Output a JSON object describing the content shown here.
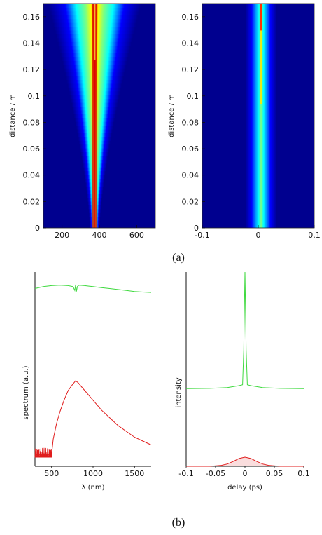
{
  "captions": {
    "a": "(a)",
    "b": "(b)"
  },
  "chart_data": [
    {
      "panel": "a-left",
      "type": "heatmap",
      "ylabel": "distance / m",
      "xlabel": "",
      "xlim": [
        100,
        700
      ],
      "ylim": [
        0,
        0.17
      ],
      "xticks": [
        "200",
        "400",
        "600"
      ],
      "xtick_values": [
        200,
        400,
        600
      ],
      "yticks": [
        "0",
        "0.02",
        "0.04",
        "0.06",
        "0.08",
        "0.1",
        "0.12",
        "0.14",
        "0.16"
      ],
      "ytick_values": [
        0,
        0.02,
        0.04,
        0.06,
        0.08,
        0.1,
        0.12,
        0.14,
        0.16
      ],
      "colormap": "jet",
      "ridge_center": 375,
      "width_at_bottom": 25,
      "width_at_top": 230
    },
    {
      "panel": "a-right",
      "type": "heatmap",
      "ylabel": "distance / m",
      "xlabel": "",
      "xlim": [
        -0.1,
        0.1
      ],
      "ylim": [
        0,
        0.17
      ],
      "xticks": [
        "-0.1",
        "0",
        "0.1"
      ],
      "xtick_values": [
        -0.1,
        0,
        0.1
      ],
      "yticks": [
        "0",
        "0.02",
        "0.04",
        "0.06",
        "0.08",
        "0.1",
        "0.12",
        "0.14",
        "0.16"
      ],
      "ytick_values": [
        0,
        0.02,
        0.04,
        0.06,
        0.08,
        0.1,
        0.12,
        0.14,
        0.16
      ],
      "colormap": "jet",
      "band_center": 0.005,
      "band_halfwidth": 0.02
    },
    {
      "panel": "b-left",
      "type": "line",
      "xlabel": "λ (nm)",
      "ylabel": "spectrum (a.u.)",
      "xlim": [
        300,
        1700
      ],
      "ylim": [
        0,
        1
      ],
      "xticks": [
        "500",
        "1000",
        "1500"
      ],
      "xtick_values": [
        500,
        1000,
        1500
      ],
      "series": [
        {
          "color": "#e01c1c",
          "x": [
            300,
            500,
            520,
            560,
            600,
            650,
            700,
            750,
            790,
            820,
            900,
            1000,
            1100,
            1200,
            1300,
            1400,
            1500,
            1600,
            1700
          ],
          "y": [
            0.06,
            0.06,
            0.14,
            0.22,
            0.28,
            0.34,
            0.39,
            0.42,
            0.44,
            0.43,
            0.39,
            0.34,
            0.29,
            0.25,
            0.21,
            0.18,
            0.15,
            0.13,
            0.11
          ]
        },
        {
          "color": "#3fd93f",
          "x": [
            300,
            400,
            500,
            600,
            700,
            760,
            780,
            790,
            800,
            810,
            830,
            900,
            1000,
            1100,
            1200,
            1300,
            1400,
            1500,
            1600,
            1700
          ],
          "y": [
            0.915,
            0.925,
            0.93,
            0.932,
            0.93,
            0.925,
            0.905,
            0.935,
            0.9,
            0.925,
            0.932,
            0.93,
            0.925,
            0.92,
            0.915,
            0.91,
            0.905,
            0.9,
            0.897,
            0.895
          ]
        }
      ]
    },
    {
      "panel": "b-right",
      "type": "line",
      "xlabel": "delay (ps)",
      "ylabel": "intensity",
      "xlim": [
        -0.1,
        0.1
      ],
      "ylim": [
        0,
        1
      ],
      "xticks": [
        "-0.1",
        "-0.05",
        "0",
        "0.05",
        "0.1"
      ],
      "xtick_values": [
        -0.1,
        -0.05,
        0,
        0.05,
        0.1
      ],
      "series": [
        {
          "color": "#e01c1c",
          "x": [
            -0.1,
            -0.06,
            -0.04,
            -0.03,
            -0.02,
            -0.01,
            0,
            0.01,
            0.02,
            0.03,
            0.04,
            0.06,
            0.1
          ],
          "y": [
            0.0,
            0.0,
            0.005,
            0.012,
            0.025,
            0.04,
            0.047,
            0.04,
            0.025,
            0.012,
            0.005,
            0.0,
            0.0
          ],
          "x_fill": "under"
        },
        {
          "color": "#3fd93f",
          "x": [
            -0.1,
            -0.06,
            -0.03,
            -0.01,
            -0.004,
            -0.002,
            0,
            0.002,
            0.004,
            0.01,
            0.03,
            0.06,
            0.1
          ],
          "y": [
            0.4,
            0.401,
            0.405,
            0.415,
            0.42,
            0.6,
            1.0,
            0.6,
            0.42,
            0.415,
            0.405,
            0.401,
            0.4
          ]
        }
      ]
    }
  ]
}
